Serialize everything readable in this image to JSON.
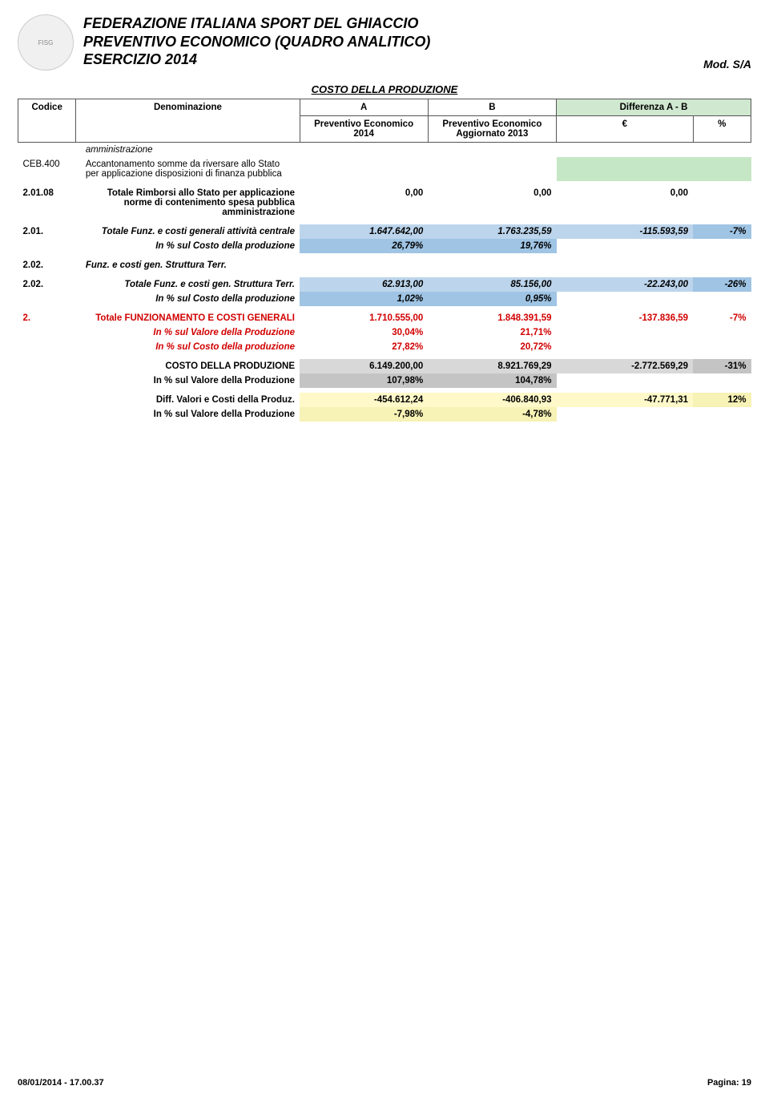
{
  "header": {
    "line1": "FEDERAZIONE ITALIANA SPORT DEL GHIACCIO",
    "line2": "PREVENTIVO ECONOMICO (QUADRO ANALITICO)",
    "line3": "ESERCIZIO 2014",
    "mod": "Mod. S/A",
    "logo_text": "FISG"
  },
  "section_title": "COSTO DELLA PRODUZIONE",
  "thead": {
    "codice": "Codice",
    "denom": "Denominazione",
    "a": "A",
    "b": "B",
    "diff": "Differenza A - B",
    "prevA": "Preventivo Economico 2014",
    "prevB": "Preventivo Economico Aggiornato 2013",
    "euro": "€",
    "pct": "%"
  },
  "rows": {
    "r0": {
      "desc": "amministrazione"
    },
    "r1": {
      "code": "CEB.400",
      "desc": "Accantonamento somme da riversare allo Stato per applicazione disposizioni di finanza pubblica"
    },
    "r2": {
      "code": "2.01.08",
      "desc": "Totale Rimborsi allo Stato per applicazione norme di contenimento spesa pubblica amministrazione",
      "a": "0,00",
      "b": "0,00",
      "e": "0,00",
      "p": ""
    },
    "r3": {
      "code": "2.01.",
      "desc": "Totale Funz. e costi generali attività centrale",
      "a": "1.647.642,00",
      "b": "1.763.235,59",
      "e": "-115.593,59",
      "p": "-7%"
    },
    "r3p": {
      "desc": "In % sul Costo della produzione",
      "a": "26,79%",
      "b": "19,76%"
    },
    "r4": {
      "code": "2.02.",
      "desc": "Funz. e costi gen. Struttura Terr."
    },
    "r5": {
      "code": "2.02.",
      "desc": "Totale Funz. e costi gen. Struttura Terr.",
      "a": "62.913,00",
      "b": "85.156,00",
      "e": "-22.243,00",
      "p": "-26%"
    },
    "r5p": {
      "desc": "In % sul Costo della produzione",
      "a": "1,02%",
      "b": "0,95%"
    },
    "r6": {
      "code": "2.",
      "desc": "Totale FUNZIONAMENTO E COSTI GENERALI",
      "a": "1.710.555,00",
      "b": "1.848.391,59",
      "e": "-137.836,59",
      "p": "-7%"
    },
    "r6v": {
      "desc": "In % sul Valore della Produzione",
      "a": "30,04%",
      "b": "21,71%"
    },
    "r6c": {
      "desc": "In % sul Costo della produzione",
      "a": "27,82%",
      "b": "20,72%"
    },
    "r7": {
      "desc": "COSTO DELLA PRODUZIONE",
      "a": "6.149.200,00",
      "b": "8.921.769,29",
      "e": "-2.772.569,29",
      "p": "-31%"
    },
    "r7v": {
      "desc": "In % sul Valore della Produzione",
      "a": "107,98%",
      "b": "104,78%"
    },
    "r8": {
      "desc": "Diff. Valori e Costi della Produz.",
      "a": "-454.612,24",
      "b": "-406.840,93",
      "e": "-47.771,31",
      "p": "12%"
    },
    "r8v": {
      "desc": "In % sul Valore della Produzione",
      "a": "-7,98%",
      "b": "-4,78%"
    }
  },
  "colors": {
    "diff_header_bg": "#cfe8cf",
    "green_cell": "#c5e7c5",
    "blue_cell": "#bcd5ec",
    "blue_pct": "#9fc4e4",
    "gray_cell": "#d8d8d8",
    "gray_pct": "#c4c4c4",
    "yellow_cell": "#fff9c9",
    "yellow_pct": "#f7f2b5",
    "border": "#555555"
  },
  "footer": {
    "left": "08/01/2014 - 17.00.37",
    "right": "Pagina: 19"
  }
}
